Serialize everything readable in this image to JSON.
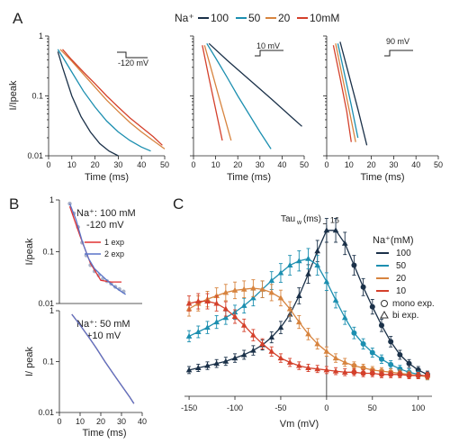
{
  "colors": {
    "100": "#1b3149",
    "50": "#1c8fb0",
    "20": "#d7843f",
    "10": "#d4402b",
    "fit1": "#e03131",
    "fit2": "#5a74c8"
  },
  "panel_letters": {
    "A": "A",
    "B": "B",
    "C": "C"
  },
  "panel_a": {
    "legend_title": "Na⁺",
    "legend_labels": [
      "100",
      "50",
      "20",
      "10mM"
    ],
    "ylabel": "I/Ipeak",
    "xlabel": "Time (ms)",
    "xticks": [
      "0",
      "10",
      "20",
      "30",
      "40",
      "50"
    ],
    "yticks": [
      "1",
      "0.1",
      "0.01"
    ],
    "protocols": [
      "-120 mV",
      "10 mV",
      "90 mV"
    ]
  },
  "panel_b": {
    "top": {
      "ylabel": "I/peak",
      "label_line1": "Na⁺: 100 mM",
      "label_line2": "-120 mV",
      "fit_labels": [
        "1 exp",
        "2 exp"
      ],
      "yticks": [
        "1",
        "0.1",
        "0.01"
      ]
    },
    "bottom": {
      "ylabel": "I/ peak",
      "label_line1": "Na⁺: 50 mM",
      "label_line2": "+10 mV",
      "yticks": [
        "1",
        "0.1",
        "0.01"
      ],
      "xticks": [
        "0",
        "10",
        "20",
        "30",
        "40"
      ],
      "xlabel": "Time (ms)"
    }
  },
  "panel_c": {
    "ylabel": "Tau",
    "ylabel_sub": "w",
    "ylabel_unit": "(ms)",
    "ytick_top": "16",
    "xlabel": "Vm (mV)",
    "xticks": [
      "-150",
      "-100",
      "-50",
      "0",
      "50",
      "100"
    ],
    "legend_title": "Na⁺(mM)",
    "legend_labels": [
      "100",
      "50",
      "20",
      "10"
    ],
    "marker_labels": [
      "mono exp.",
      "bi exp."
    ]
  },
  "chart_data": [
    {
      "type": "line",
      "title": "",
      "xlabel": "Time (ms)",
      "ylabel": "I/Ipeak",
      "yscale": "log",
      "xlim": [
        0,
        50
      ],
      "ylim": [
        0.01,
        1
      ],
      "protocol": "-120 mV",
      "series": [
        {
          "name": "100",
          "x": [
            4,
            6,
            10,
            14,
            18,
            22,
            26,
            30
          ],
          "y": [
            0.55,
            0.3,
            0.1,
            0.045,
            0.025,
            0.016,
            0.012,
            0.01
          ]
        },
        {
          "name": "50",
          "x": [
            4,
            6,
            10,
            15,
            20,
            25,
            30,
            35,
            40,
            44
          ],
          "y": [
            0.6,
            0.45,
            0.25,
            0.12,
            0.065,
            0.038,
            0.025,
            0.018,
            0.014,
            0.012
          ]
        },
        {
          "name": "20",
          "x": [
            5,
            10,
            15,
            20,
            25,
            30,
            35,
            40,
            45,
            50
          ],
          "y": [
            0.6,
            0.38,
            0.23,
            0.14,
            0.085,
            0.055,
            0.036,
            0.025,
            0.018,
            0.013
          ]
        },
        {
          "name": "10mM",
          "x": [
            6,
            10,
            15,
            20,
            25,
            30,
            35,
            40,
            45,
            49
          ],
          "y": [
            0.6,
            0.4,
            0.25,
            0.16,
            0.1,
            0.065,
            0.043,
            0.03,
            0.021,
            0.015
          ]
        }
      ]
    },
    {
      "type": "line",
      "title": "",
      "xlabel": "Time (ms)",
      "ylabel": "",
      "yscale": "log",
      "xlim": [
        0,
        50
      ],
      "ylim": [
        0.01,
        1
      ],
      "protocol": "10 mV",
      "series": [
        {
          "name": "100",
          "x": [
            7,
            15,
            25,
            35,
            45,
            49
          ],
          "y": [
            0.75,
            0.4,
            0.19,
            0.09,
            0.042,
            0.031
          ]
        },
        {
          "name": "50",
          "x": [
            6,
            10,
            15,
            20,
            25,
            30,
            35
          ],
          "y": [
            0.75,
            0.43,
            0.21,
            0.1,
            0.05,
            0.025,
            0.013
          ]
        },
        {
          "name": "20",
          "x": [
            5,
            8,
            11,
            14,
            17
          ],
          "y": [
            0.7,
            0.28,
            0.11,
            0.045,
            0.018
          ]
        },
        {
          "name": "10mM",
          "x": [
            4,
            7,
            10,
            13
          ],
          "y": [
            0.7,
            0.2,
            0.06,
            0.018
          ]
        }
      ]
    },
    {
      "type": "line",
      "title": "",
      "xlabel": "Time (ms)",
      "ylabel": "",
      "yscale": "log",
      "xlim": [
        0,
        50
      ],
      "ylim": [
        0.01,
        1
      ],
      "protocol": "90 mV",
      "series": [
        {
          "name": "100",
          "x": [
            6,
            10,
            14,
            18
          ],
          "y": [
            0.8,
            0.22,
            0.06,
            0.015
          ]
        },
        {
          "name": "50",
          "x": [
            5,
            8,
            11,
            14
          ],
          "y": [
            0.75,
            0.23,
            0.07,
            0.02
          ]
        },
        {
          "name": "20",
          "x": [
            4,
            7,
            10,
            13
          ],
          "y": [
            0.75,
            0.21,
            0.06,
            0.017
          ]
        },
        {
          "name": "10mM",
          "x": [
            3,
            6,
            9,
            11
          ],
          "y": [
            0.7,
            0.2,
            0.055,
            0.017
          ]
        }
      ]
    },
    {
      "type": "line",
      "title": "",
      "xlabel": "",
      "ylabel": "I/peak",
      "yscale": "log",
      "xlim": [
        0,
        40
      ],
      "ylim": [
        0.01,
        1
      ],
      "series": [
        {
          "name": "",
          "x": [
            5,
            7,
            9,
            11,
            13,
            15,
            17,
            19,
            21,
            23,
            25,
            27,
            29,
            31
          ],
          "y": [
            0.85,
            0.55,
            0.3,
            0.15,
            0.085,
            0.055,
            0.042,
            0.035,
            0.03,
            0.027,
            0.024,
            0.021,
            0.019,
            0.017
          ]
        },
        {
          "name": "1 exp",
          "x": [
            5,
            10,
            15,
            20,
            25,
            30
          ],
          "y": [
            0.75,
            0.2,
            0.06,
            0.028,
            0.026,
            0.026
          ]
        },
        {
          "name": "2 exp",
          "x": [
            5,
            8,
            11,
            14,
            17,
            20,
            23,
            26,
            29,
            32
          ],
          "y": [
            0.85,
            0.42,
            0.16,
            0.075,
            0.047,
            0.036,
            0.028,
            0.022,
            0.018,
            0.015
          ]
        }
      ]
    },
    {
      "type": "line",
      "title": "",
      "xlabel": "Time (ms)",
      "ylabel": "I/ peak",
      "yscale": "log",
      "xlim": [
        0,
        40
      ],
      "ylim": [
        0.01,
        1
      ],
      "series": [
        {
          "name": "",
          "x": [
            6,
            10,
            14,
            18,
            22,
            26,
            30,
            34,
            36
          ],
          "y": [
            0.85,
            0.52,
            0.31,
            0.18,
            0.1,
            0.058,
            0.034,
            0.02,
            0.015
          ]
        }
      ]
    },
    {
      "type": "line",
      "title": "",
      "xlabel": "Vm (mV)",
      "ylabel": "Tau w (ms)",
      "xlim": [
        -155,
        115
      ],
      "ylim": [
        0,
        16.5
      ],
      "legend_title": "Na⁺(mM)",
      "series": [
        {
          "name": "100",
          "x": [
            -150,
            -140,
            -130,
            -120,
            -110,
            -100,
            -90,
            -80,
            -70,
            -60,
            -50,
            -40,
            -30,
            -20,
            -10,
            0,
            10,
            20,
            30,
            40,
            50,
            60,
            70,
            80,
            90,
            100,
            110
          ],
          "y": [
            2.4,
            2.6,
            2.8,
            3,
            3.2,
            3.5,
            3.8,
            4.2,
            4.7,
            5.4,
            6.3,
            7.5,
            9.2,
            11.2,
            13.3,
            15.2,
            15.2,
            14,
            12,
            10,
            8.2,
            6.5,
            5,
            3.8,
            3,
            2.4,
            2
          ]
        },
        {
          "name": "50",
          "x": [
            -150,
            -140,
            -130,
            -120,
            -110,
            -100,
            -90,
            -80,
            -70,
            -60,
            -50,
            -40,
            -30,
            -20,
            -10,
            0,
            10,
            20,
            30,
            40,
            50,
            60,
            70,
            80,
            90,
            100,
            110
          ],
          "y": [
            5.5,
            5.9,
            6.3,
            6.8,
            7.2,
            7.7,
            8.3,
            9,
            9.8,
            10.6,
            11.3,
            12,
            12.4,
            12.6,
            12,
            10.5,
            8.8,
            7.2,
            5.8,
            4.8,
            4,
            3.4,
            2.9,
            2.5,
            2.2,
            2,
            1.8
          ]
        },
        {
          "name": "20",
          "x": [
            -150,
            -140,
            -130,
            -120,
            -110,
            -100,
            -90,
            -80,
            -70,
            -60,
            -50,
            -40,
            -30,
            -20,
            -10,
            0,
            10,
            20,
            30,
            40,
            50,
            60,
            70,
            80,
            90,
            100,
            110
          ],
          "y": [
            8,
            8.5,
            8.9,
            9.2,
            9.5,
            9.7,
            9.8,
            9.9,
            9.8,
            9.5,
            9,
            8,
            6.8,
            5.7,
            4.8,
            4.1,
            3.5,
            3.1,
            2.8,
            2.6,
            2.4,
            2.3,
            2.2,
            2.1,
            2,
            1.9,
            1.8
          ]
        },
        {
          "name": "10",
          "x": [
            -150,
            -140,
            -130,
            -120,
            -110,
            -100,
            -90,
            -80,
            -70,
            -60,
            -50,
            -40,
            -30,
            -20,
            -10,
            0,
            10,
            20,
            30,
            40,
            50,
            60,
            70,
            80,
            90,
            100,
            110
          ],
          "y": [
            8.5,
            8.7,
            8.7,
            8.5,
            8,
            7.3,
            6.5,
            5.6,
            4.8,
            4.1,
            3.5,
            3.1,
            2.8,
            2.6,
            2.5,
            2.4,
            2.3,
            2.2,
            2.2,
            2.1,
            2.1,
            2,
            2,
            2,
            1.9,
            1.9,
            1.9
          ]
        }
      ]
    }
  ]
}
